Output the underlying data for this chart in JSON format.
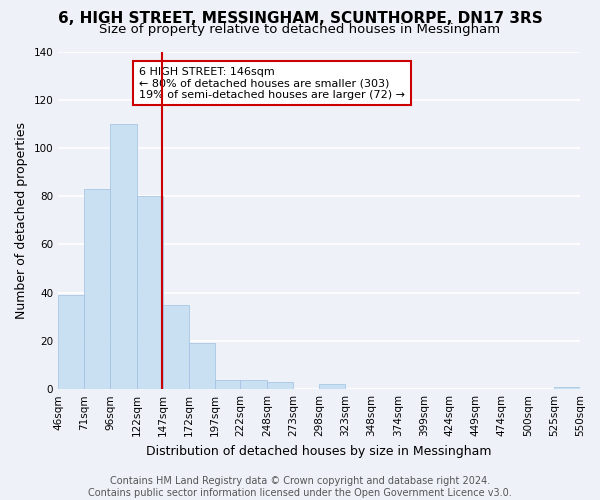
{
  "title": "6, HIGH STREET, MESSINGHAM, SCUNTHORPE, DN17 3RS",
  "subtitle": "Size of property relative to detached houses in Messingham",
  "xlabel": "Distribution of detached houses by size in Messingham",
  "ylabel": "Number of detached properties",
  "bar_edges": [
    46,
    71,
    96,
    122,
    147,
    172,
    197,
    222,
    248,
    273,
    298,
    323,
    348,
    374,
    399,
    424,
    449,
    474,
    500,
    525,
    550
  ],
  "bar_heights": [
    39,
    83,
    110,
    80,
    35,
    19,
    4,
    4,
    3,
    0,
    2,
    0,
    0,
    0,
    0,
    0,
    0,
    0,
    0,
    1
  ],
  "bar_color": "#c9dff2",
  "bar_edgecolor": "#a0c0e0",
  "vline_x": 146,
  "vline_color": "#cc0000",
  "annotation_line1": "6 HIGH STREET: 146sqm",
  "annotation_line2": "← 80% of detached houses are smaller (303)",
  "annotation_line3": "19% of semi-detached houses are larger (72) →",
  "ylim": [
    0,
    140
  ],
  "yticks": [
    0,
    20,
    40,
    60,
    80,
    100,
    120,
    140
  ],
  "tick_labels": [
    "46sqm",
    "71sqm",
    "96sqm",
    "122sqm",
    "147sqm",
    "172sqm",
    "197sqm",
    "222sqm",
    "248sqm",
    "273sqm",
    "298sqm",
    "323sqm",
    "348sqm",
    "374sqm",
    "399sqm",
    "424sqm",
    "449sqm",
    "474sqm",
    "500sqm",
    "525sqm",
    "550sqm"
  ],
  "footer_line1": "Contains HM Land Registry data © Crown copyright and database right 2024.",
  "footer_line2": "Contains public sector information licensed under the Open Government Licence v3.0.",
  "background_color": "#eef2f8",
  "grid_color": "#ffffff",
  "title_fontsize": 11,
  "subtitle_fontsize": 9.5,
  "axis_label_fontsize": 9,
  "tick_fontsize": 7.5,
  "footer_fontsize": 7,
  "annotation_fontsize": 8
}
